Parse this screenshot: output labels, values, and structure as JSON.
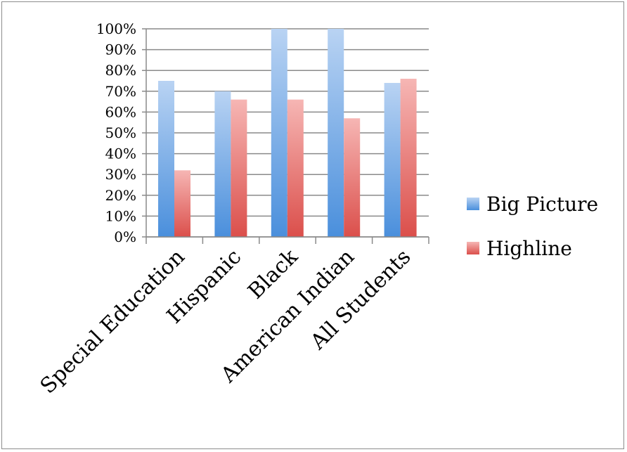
{
  "chart_data": {
    "type": "bar",
    "categories": [
      "Special Education",
      "Hispanic",
      "Black",
      "American Indian",
      "All Students"
    ],
    "series": [
      {
        "name": "Big Picture",
        "values": [
          75,
          70,
          100,
          100,
          74
        ],
        "color": "#5b9bd5"
      },
      {
        "name": "Highline",
        "values": [
          32,
          66,
          66,
          57,
          76
        ],
        "color": "#e26b68"
      }
    ],
    "y_ticks": [
      "0%",
      "10%",
      "20%",
      "30%",
      "40%",
      "50%",
      "60%",
      "70%",
      "80%",
      "90%",
      "100%"
    ],
    "ylim": [
      0,
      100
    ],
    "grid": true,
    "legend": "right"
  }
}
